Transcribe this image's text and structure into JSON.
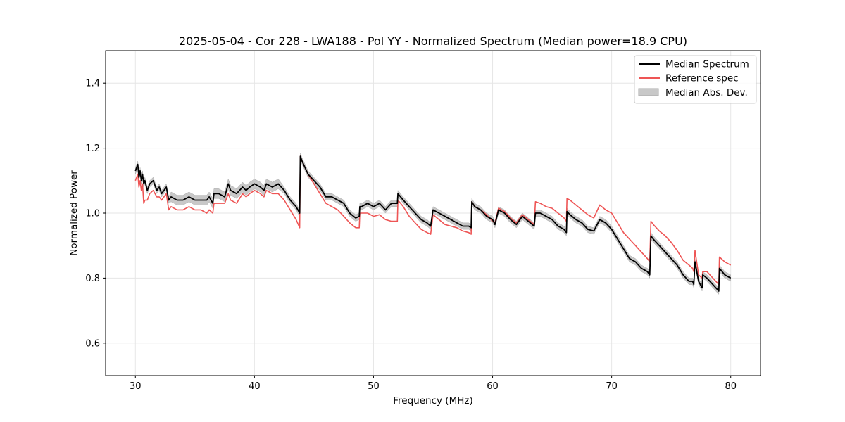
{
  "chart_data": {
    "type": "line",
    "title": "2025-05-04 - Cor 228 - LWA188 - Pol YY - Normalized Spectrum (Median power=18.9 CPU)",
    "xlabel": "Frequency (MHz)",
    "ylabel": "Normalized Power",
    "xlim": [
      27.5,
      82.5
    ],
    "ylim": [
      0.5,
      1.5
    ],
    "xticks": [
      30,
      40,
      50,
      60,
      70,
      80
    ],
    "yticks": [
      0.6,
      0.8,
      1.0,
      1.2,
      1.4
    ],
    "xtick_labels": [
      "30",
      "40",
      "50",
      "60",
      "70",
      "80"
    ],
    "ytick_labels": [
      "0.6",
      "0.8",
      "1.0",
      "1.2",
      "1.4"
    ],
    "grid": true,
    "legend_position": "top-right",
    "legend": [
      "Median Spectrum",
      "Reference spec",
      "Median Abs. Dev."
    ],
    "colors": {
      "median": "#000000",
      "reference": "#ee5555",
      "mad_fill": "#c8c8c8",
      "mad_edge": "#a8a8a8",
      "grid": "#e6e6e6"
    },
    "series": [
      {
        "name": "Median Spectrum",
        "x": [
          30.0,
          30.1,
          30.2,
          30.3,
          30.4,
          30.5,
          30.6,
          30.7,
          30.8,
          31.0,
          31.2,
          31.5,
          31.8,
          32.0,
          32.2,
          32.4,
          32.6,
          32.8,
          33.0,
          33.5,
          34.0,
          34.5,
          35.0,
          35.5,
          36.0,
          36.2,
          36.5,
          36.6,
          37.0,
          37.5,
          37.8,
          38.0,
          38.5,
          39.0,
          39.3,
          39.6,
          40.0,
          40.5,
          40.8,
          41.0,
          41.5,
          42.0,
          42.5,
          43.0,
          43.5,
          43.8,
          43.85,
          44.0,
          44.5,
          45.0,
          45.5,
          46.0,
          46.5,
          47.0,
          47.5,
          48.0,
          48.5,
          48.8,
          48.85,
          49.0,
          49.5,
          50.0,
          50.5,
          51.0,
          51.5,
          52.0,
          52.05,
          52.5,
          53.0,
          53.5,
          54.0,
          54.5,
          54.8,
          55.0,
          55.5,
          56.0,
          56.5,
          57.0,
          57.5,
          58.0,
          58.2,
          58.25,
          58.5,
          59.0,
          59.5,
          60.0,
          60.2,
          60.5,
          61.0,
          61.5,
          62.0,
          62.5,
          63.0,
          63.5,
          63.6,
          64.0,
          64.5,
          65.0,
          65.5,
          66.0,
          66.2,
          66.25,
          66.5,
          67.0,
          67.5,
          68.0,
          68.5,
          69.0,
          69.5,
          70.0,
          70.5,
          71.0,
          71.5,
          72.0,
          72.5,
          73.0,
          73.2,
          73.3,
          73.5,
          74.0,
          74.5,
          75.0,
          75.5,
          76.0,
          76.5,
          76.8,
          76.9,
          77.0,
          77.3,
          77.6,
          77.65,
          78.0,
          78.5,
          79.0,
          79.05,
          79.5,
          80.0
        ],
        "values": [
          1.13,
          1.14,
          1.15,
          1.11,
          1.13,
          1.1,
          1.12,
          1.09,
          1.1,
          1.07,
          1.09,
          1.1,
          1.07,
          1.08,
          1.06,
          1.07,
          1.08,
          1.04,
          1.05,
          1.04,
          1.04,
          1.05,
          1.04,
          1.04,
          1.04,
          1.05,
          1.03,
          1.06,
          1.06,
          1.05,
          1.09,
          1.07,
          1.06,
          1.08,
          1.07,
          1.08,
          1.09,
          1.08,
          1.07,
          1.09,
          1.08,
          1.09,
          1.07,
          1.04,
          1.02,
          1.0,
          1.175,
          1.16,
          1.12,
          1.1,
          1.08,
          1.05,
          1.05,
          1.04,
          1.03,
          1.0,
          0.985,
          0.99,
          1.02,
          1.02,
          1.03,
          1.02,
          1.03,
          1.01,
          1.03,
          1.03,
          1.06,
          1.04,
          1.02,
          1.0,
          0.98,
          0.97,
          0.96,
          1.01,
          1.0,
          0.99,
          0.98,
          0.97,
          0.96,
          0.96,
          0.955,
          1.035,
          1.02,
          1.01,
          0.99,
          0.98,
          0.965,
          1.01,
          1.0,
          0.98,
          0.965,
          0.99,
          0.975,
          0.96,
          1.0,
          1.0,
          0.99,
          0.98,
          0.96,
          0.95,
          0.94,
          1.005,
          0.995,
          0.98,
          0.97,
          0.95,
          0.945,
          0.98,
          0.97,
          0.95,
          0.92,
          0.89,
          0.86,
          0.85,
          0.83,
          0.82,
          0.81,
          0.93,
          0.92,
          0.9,
          0.88,
          0.86,
          0.84,
          0.81,
          0.79,
          0.79,
          0.78,
          0.85,
          0.79,
          0.77,
          0.81,
          0.8,
          0.78,
          0.76,
          0.83,
          0.81,
          0.8
        ]
      },
      {
        "name": "Reference spec",
        "x": [
          30.0,
          30.1,
          30.2,
          30.3,
          30.4,
          30.5,
          30.6,
          30.7,
          30.8,
          31.0,
          31.2,
          31.5,
          31.8,
          32.0,
          32.2,
          32.4,
          32.6,
          32.8,
          33.0,
          33.5,
          34.0,
          34.5,
          35.0,
          35.5,
          36.0,
          36.2,
          36.5,
          36.6,
          37.0,
          37.5,
          37.8,
          38.0,
          38.5,
          39.0,
          39.3,
          39.6,
          40.0,
          40.5,
          40.8,
          41.0,
          41.5,
          42.0,
          42.5,
          43.0,
          43.5,
          43.8,
          43.85,
          44.0,
          44.5,
          45.0,
          45.5,
          46.0,
          46.5,
          47.0,
          47.5,
          48.0,
          48.5,
          48.8,
          48.85,
          49.0,
          49.5,
          50.0,
          50.5,
          51.0,
          51.5,
          52.0,
          52.05,
          52.5,
          53.0,
          53.5,
          54.0,
          54.5,
          54.8,
          55.0,
          55.5,
          56.0,
          56.5,
          57.0,
          57.5,
          58.0,
          58.2,
          58.25,
          58.5,
          59.0,
          59.5,
          60.0,
          60.2,
          60.5,
          61.0,
          61.5,
          62.0,
          62.5,
          63.0,
          63.5,
          63.6,
          64.0,
          64.5,
          65.0,
          65.5,
          66.0,
          66.2,
          66.25,
          66.5,
          67.0,
          67.5,
          68.0,
          68.5,
          69.0,
          69.5,
          70.0,
          70.5,
          71.0,
          71.5,
          72.0,
          72.5,
          73.0,
          73.2,
          73.3,
          73.5,
          74.0,
          74.5,
          75.0,
          75.5,
          76.0,
          76.5,
          76.8,
          76.9,
          77.0,
          77.3,
          77.6,
          77.65,
          78.0,
          78.5,
          79.0,
          79.05,
          79.5,
          80.0
        ],
        "values": [
          1.1,
          1.11,
          1.12,
          1.08,
          1.1,
          1.07,
          1.09,
          1.03,
          1.04,
          1.04,
          1.06,
          1.07,
          1.05,
          1.05,
          1.04,
          1.05,
          1.06,
          1.01,
          1.02,
          1.01,
          1.01,
          1.02,
          1.01,
          1.01,
          1.0,
          1.01,
          1.0,
          1.03,
          1.03,
          1.03,
          1.06,
          1.04,
          1.03,
          1.06,
          1.05,
          1.06,
          1.07,
          1.06,
          1.05,
          1.07,
          1.06,
          1.06,
          1.04,
          1.01,
          0.98,
          0.955,
          1.175,
          1.16,
          1.12,
          1.09,
          1.06,
          1.03,
          1.02,
          1.01,
          0.99,
          0.97,
          0.955,
          0.955,
          1.0,
          1.0,
          1.0,
          0.99,
          0.995,
          0.98,
          0.975,
          0.975,
          1.04,
          1.02,
          0.99,
          0.97,
          0.95,
          0.94,
          0.935,
          0.995,
          0.98,
          0.965,
          0.96,
          0.955,
          0.945,
          0.94,
          0.935,
          1.035,
          1.02,
          1.01,
          0.995,
          0.975,
          0.97,
          1.015,
          1.005,
          0.985,
          0.97,
          0.995,
          0.98,
          0.965,
          1.035,
          1.03,
          1.02,
          1.015,
          1.0,
          0.985,
          0.975,
          1.045,
          1.04,
          1.025,
          1.01,
          0.995,
          0.985,
          1.025,
          1.01,
          1.0,
          0.97,
          0.94,
          0.92,
          0.9,
          0.88,
          0.86,
          0.85,
          0.975,
          0.965,
          0.945,
          0.93,
          0.91,
          0.885,
          0.855,
          0.84,
          0.83,
          0.82,
          0.885,
          0.81,
          0.8,
          0.82,
          0.82,
          0.8,
          0.78,
          0.865,
          0.85,
          0.84
        ]
      },
      {
        "name": "Median Abs. Dev.",
        "type": "band",
        "x": [
          30.0,
          30.1,
          30.2,
          30.3,
          30.4,
          30.5,
          30.6,
          30.7,
          30.8,
          31.0,
          31.2,
          31.5,
          31.8,
          32.0,
          32.2,
          32.4,
          32.6,
          32.8,
          33.0,
          33.5,
          34.0,
          34.5,
          35.0,
          35.5,
          36.0,
          36.2,
          36.5,
          36.6,
          37.0,
          37.5,
          37.8,
          38.0,
          38.5,
          39.0,
          39.3,
          39.6,
          40.0,
          40.5,
          40.8,
          41.0,
          41.5,
          42.0,
          42.5,
          43.0,
          43.5,
          43.8,
          43.85,
          44.0,
          44.5,
          45.0,
          45.5,
          46.0,
          46.5,
          47.0,
          47.5,
          48.0,
          48.5,
          48.8,
          48.85,
          49.0,
          49.5,
          50.0,
          50.5,
          51.0,
          51.5,
          52.0,
          52.05,
          52.5,
          53.0,
          53.5,
          54.0,
          54.5,
          54.8,
          55.0,
          55.5,
          56.0,
          56.5,
          57.0,
          57.5,
          58.0,
          58.2,
          58.25,
          58.5,
          59.0,
          59.5,
          60.0,
          60.2,
          60.5,
          61.0,
          61.5,
          62.0,
          62.5,
          63.0,
          63.5,
          63.6,
          64.0,
          64.5,
          65.0,
          65.5,
          66.0,
          66.2,
          66.25,
          66.5,
          67.0,
          67.5,
          68.0,
          68.5,
          69.0,
          69.5,
          70.0,
          70.5,
          71.0,
          71.5,
          72.0,
          72.5,
          73.0,
          73.2,
          73.3,
          73.5,
          74.0,
          74.5,
          75.0,
          75.5,
          76.0,
          76.5,
          76.8,
          76.9,
          77.0,
          77.3,
          77.6,
          77.65,
          78.0,
          78.5,
          79.0,
          79.05,
          79.5,
          80.0
        ],
        "lower": [
          1.12,
          1.13,
          1.14,
          1.1,
          1.12,
          1.09,
          1.11,
          1.08,
          1.09,
          1.06,
          1.08,
          1.09,
          1.06,
          1.07,
          1.05,
          1.06,
          1.07,
          1.03,
          1.035,
          1.025,
          1.025,
          1.035,
          1.025,
          1.025,
          1.025,
          1.035,
          1.015,
          1.045,
          1.045,
          1.035,
          1.075,
          1.055,
          1.045,
          1.065,
          1.055,
          1.065,
          1.075,
          1.065,
          1.055,
          1.075,
          1.065,
          1.075,
          1.06,
          1.03,
          1.01,
          0.99,
          1.165,
          1.15,
          1.11,
          1.09,
          1.07,
          1.04,
          1.04,
          1.03,
          1.02,
          0.99,
          0.975,
          0.98,
          1.01,
          1.01,
          1.02,
          1.01,
          1.02,
          1.0,
          1.02,
          1.02,
          1.05,
          1.03,
          1.01,
          0.99,
          0.97,
          0.96,
          0.95,
          1.0,
          0.99,
          0.98,
          0.97,
          0.96,
          0.95,
          0.95,
          0.945,
          1.025,
          1.01,
          1.0,
          0.98,
          0.97,
          0.955,
          1.0,
          0.99,
          0.97,
          0.955,
          0.98,
          0.965,
          0.95,
          0.99,
          0.99,
          0.98,
          0.97,
          0.95,
          0.94,
          0.93,
          0.995,
          0.985,
          0.97,
          0.96,
          0.94,
          0.935,
          0.97,
          0.96,
          0.94,
          0.91,
          0.88,
          0.85,
          0.84,
          0.82,
          0.81,
          0.8,
          0.92,
          0.91,
          0.89,
          0.87,
          0.85,
          0.83,
          0.8,
          0.78,
          0.78,
          0.77,
          0.84,
          0.78,
          0.76,
          0.8,
          0.79,
          0.77,
          0.75,
          0.82,
          0.8,
          0.79
        ],
        "upper": [
          1.14,
          1.15,
          1.16,
          1.12,
          1.14,
          1.11,
          1.13,
          1.1,
          1.11,
          1.08,
          1.1,
          1.11,
          1.08,
          1.09,
          1.07,
          1.08,
          1.09,
          1.05,
          1.065,
          1.055,
          1.055,
          1.065,
          1.055,
          1.055,
          1.055,
          1.065,
          1.045,
          1.075,
          1.075,
          1.065,
          1.105,
          1.085,
          1.075,
          1.095,
          1.085,
          1.095,
          1.105,
          1.095,
          1.085,
          1.105,
          1.095,
          1.105,
          1.08,
          1.05,
          1.03,
          1.01,
          1.185,
          1.17,
          1.13,
          1.11,
          1.09,
          1.06,
          1.06,
          1.05,
          1.04,
          1.01,
          0.995,
          1.0,
          1.03,
          1.03,
          1.04,
          1.03,
          1.04,
          1.02,
          1.04,
          1.04,
          1.07,
          1.05,
          1.03,
          1.01,
          0.99,
          0.98,
          0.97,
          1.02,
          1.01,
          1.0,
          0.99,
          0.98,
          0.97,
          0.97,
          0.965,
          1.045,
          1.03,
          1.02,
          1.0,
          0.99,
          0.975,
          1.02,
          1.01,
          0.99,
          0.975,
          1.0,
          0.985,
          0.97,
          1.01,
          1.01,
          1.0,
          0.99,
          0.97,
          0.96,
          0.95,
          1.015,
          1.005,
          0.99,
          0.98,
          0.96,
          0.955,
          0.99,
          0.98,
          0.96,
          0.93,
          0.9,
          0.87,
          0.86,
          0.84,
          0.83,
          0.82,
          0.94,
          0.93,
          0.91,
          0.89,
          0.87,
          0.85,
          0.82,
          0.8,
          0.8,
          0.79,
          0.86,
          0.8,
          0.78,
          0.82,
          0.81,
          0.79,
          0.77,
          0.84,
          0.82,
          0.81
        ]
      }
    ]
  }
}
